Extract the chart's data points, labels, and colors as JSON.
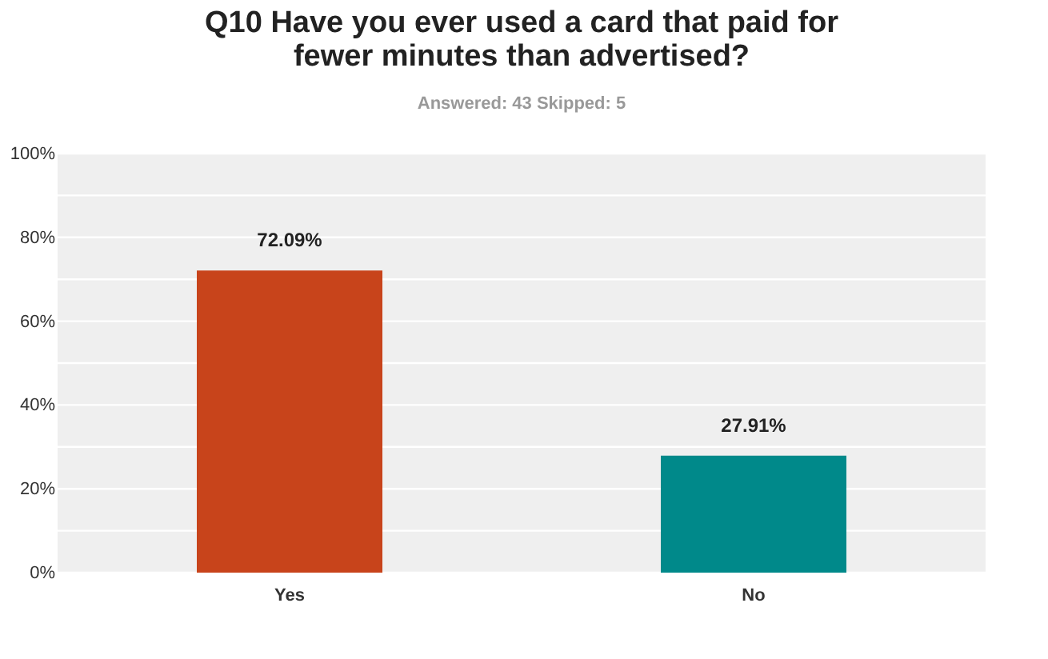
{
  "chart_data": {
    "type": "bar",
    "title": "Q10 Have you ever used a card that paid for fewer minutes than advertised?",
    "subtitle": "Answered: 43    Skipped: 5",
    "categories": [
      "Yes",
      "No"
    ],
    "values": [
      72.09,
      27.91
    ],
    "colors": [
      "#c8441b",
      "#00898a"
    ],
    "ylim": [
      0,
      100
    ],
    "yticks": [
      {
        "value": 0,
        "label": "0%"
      },
      {
        "value": 10,
        "label": null
      },
      {
        "value": 20,
        "label": "20%"
      },
      {
        "value": 30,
        "label": null
      },
      {
        "value": 40,
        "label": "40%"
      },
      {
        "value": 50,
        "label": null
      },
      {
        "value": 60,
        "label": "60%"
      },
      {
        "value": 70,
        "label": null
      },
      {
        "value": 80,
        "label": "80%"
      },
      {
        "value": 90,
        "label": null
      },
      {
        "value": 100,
        "label": "100%"
      }
    ],
    "value_labels": [
      "72.09%",
      "27.91%"
    ],
    "grid": "y"
  }
}
